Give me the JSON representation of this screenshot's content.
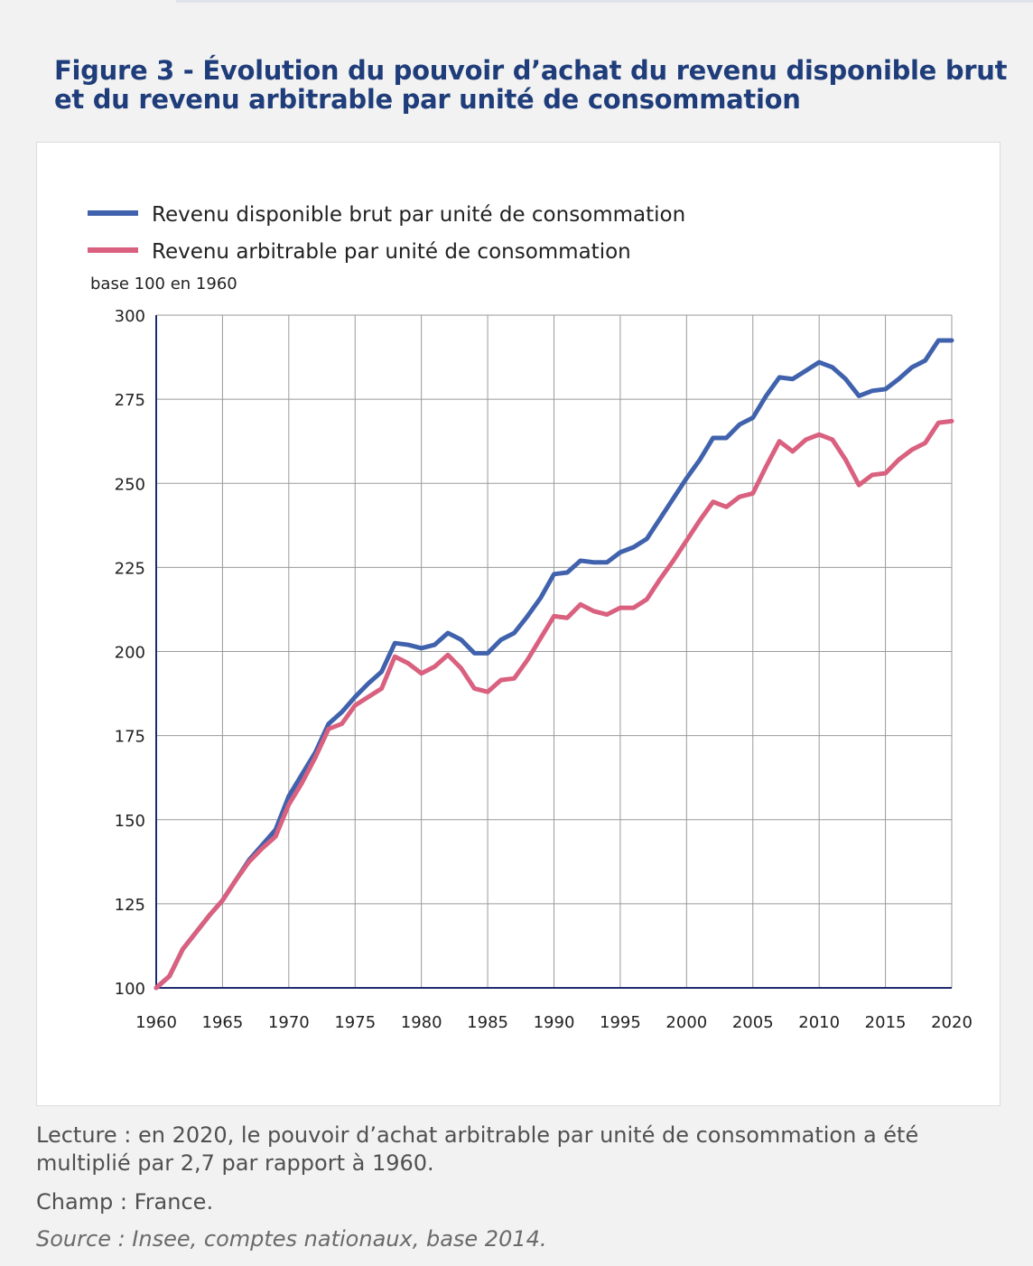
{
  "figure": {
    "title": "Figure 3 - Évolution du pouvoir d’achat du revenu disponible brut et du revenu arbitrable par unité de consommation"
  },
  "notes": {
    "lecture": "Lecture : en 2020, le pouvoir d’achat arbitrable par unité de consommation a été multiplié par 2,7 par rapport à 1960.",
    "champ": "Champ : France.",
    "source": "Source : Insee, comptes nationaux, base 2014."
  },
  "chart_data": {
    "type": "line",
    "ylabel": "base 100 en 1960",
    "xlabel": "",
    "xlim": [
      1960,
      2020
    ],
    "ylim": [
      100,
      300
    ],
    "x_ticks": [
      1960,
      1965,
      1970,
      1975,
      1980,
      1985,
      1990,
      1995,
      2000,
      2005,
      2010,
      2015,
      2020
    ],
    "y_ticks": [
      100,
      125,
      150,
      175,
      200,
      225,
      250,
      275,
      300
    ],
    "grid": true,
    "legend_position": "top-left",
    "x": [
      1960,
      1961,
      1962,
      1963,
      1964,
      1965,
      1966,
      1967,
      1968,
      1969,
      1970,
      1971,
      1972,
      1973,
      1974,
      1975,
      1976,
      1977,
      1978,
      1979,
      1980,
      1981,
      1982,
      1983,
      1984,
      1985,
      1986,
      1987,
      1988,
      1989,
      1990,
      1991,
      1992,
      1993,
      1994,
      1995,
      1996,
      1997,
      1998,
      1999,
      2000,
      2001,
      2002,
      2003,
      2004,
      2005,
      2006,
      2007,
      2008,
      2009,
      2010,
      2011,
      2012,
      2013,
      2014,
      2015,
      2016,
      2017,
      2018,
      2019,
      2020
    ],
    "series": [
      {
        "name": "Revenu disponible brut par unité de consommation",
        "color": "#4062ad",
        "values": [
          100,
          103.5,
          111.5,
          116.5,
          121.5,
          126,
          132,
          138,
          142.5,
          147,
          157,
          163.5,
          170,
          178.5,
          182,
          186.5,
          190.5,
          194,
          202.5,
          202,
          201,
          202,
          205.5,
          203.5,
          199.5,
          199.5,
          203.5,
          205.5,
          210.5,
          216,
          223,
          223.5,
          227,
          226.5,
          226.5,
          229.5,
          231,
          233.5,
          239.5,
          245.5,
          251.5,
          257,
          263.5,
          263.5,
          267.5,
          269.5,
          276,
          281.5,
          281,
          283.5,
          286,
          284.5,
          281,
          276,
          277.5,
          278,
          281,
          284.5,
          286.5,
          292.5,
          292.5
        ]
      },
      {
        "name": "Revenu arbitrable par unité de consommation",
        "color": "#d9607e",
        "values": [
          100,
          103.5,
          111.5,
          116.5,
          121.5,
          126,
          132,
          137.5,
          141.5,
          145,
          154.5,
          161,
          168.5,
          177,
          178.5,
          184,
          186.5,
          189,
          198.5,
          196.5,
          193.5,
          195.5,
          199,
          195,
          189,
          188,
          191.5,
          192,
          197.5,
          204,
          210.5,
          210,
          214,
          212,
          211,
          213,
          213,
          215.5,
          221.5,
          227,
          233,
          239,
          244.5,
          243,
          246,
          247,
          255,
          262.5,
          259.5,
          263,
          264.5,
          263,
          257,
          249.5,
          252.5,
          253,
          257,
          260,
          262,
          268,
          268.5
        ]
      }
    ]
  }
}
